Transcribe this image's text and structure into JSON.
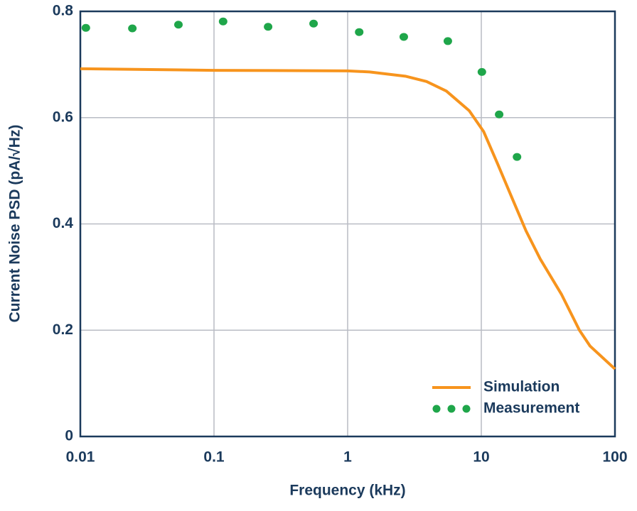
{
  "chart_data": {
    "type": "line",
    "xlabel": "Frequency (kHz)",
    "ylabel": "Current Noise PSD (pA/√Hz)",
    "xscale": "log",
    "xlim": [
      0.01,
      100
    ],
    "xticks": [
      0.01,
      0.1,
      1,
      10,
      100
    ],
    "ylim": [
      0,
      0.8
    ],
    "yticks": [
      0,
      0.2,
      0.4,
      0.6,
      0.8
    ],
    "grid": true,
    "legend": "lower right",
    "series": [
      {
        "name": "Simulation",
        "color": "#f7941d",
        "mode": "line",
        "x": [
          0.01,
          0.1,
          1,
          1.46,
          2.7,
          3.89,
          5.48,
          8.12,
          10.4,
          13.2,
          16.9,
          21.6,
          27.6,
          39.9,
          54.2,
          65.2,
          100
        ],
        "values": [
          0.692,
          0.689,
          0.688,
          0.686,
          0.678,
          0.668,
          0.65,
          0.613,
          0.574,
          0.514,
          0.45,
          0.387,
          0.334,
          0.267,
          0.2,
          0.17,
          0.127
        ]
      },
      {
        "name": "Measurement",
        "color": "#1fa64a",
        "mode": "markers",
        "x": [
          0.011,
          0.0245,
          0.0542,
          0.117,
          0.254,
          0.556,
          1.22,
          2.63,
          5.62,
          10.1,
          13.6,
          18.5
        ],
        "values": [
          0.769,
          0.768,
          0.775,
          0.781,
          0.771,
          0.777,
          0.761,
          0.752,
          0.744,
          0.686,
          0.606,
          0.526
        ]
      }
    ]
  }
}
